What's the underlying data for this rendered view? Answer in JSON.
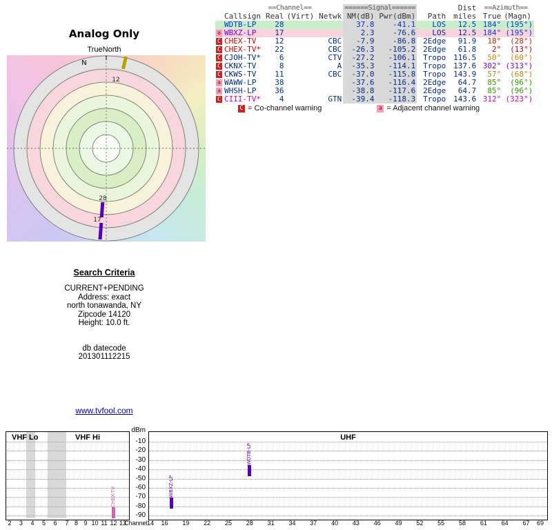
{
  "radar": {
    "title": "Analog Only",
    "subtitle": "TrueNorth",
    "north_label": "N",
    "markers": [
      {
        "label": "12",
        "color": "#b4a400"
      },
      {
        "label": "28",
        "color": "#5a00b4"
      },
      {
        "label": "17",
        "color": "#5a00b4"
      }
    ]
  },
  "table": {
    "header": {
      "channel_group": "==Channel==",
      "signal_group": "======Signal======",
      "dist_group": "Dist",
      "azimuth_group": "==Azimuth==",
      "cols": [
        "Callsign",
        "Real",
        "(Virt)",
        "Netwk",
        "NM(dB)",
        "Pwr(dBm)",
        "Path",
        "miles",
        "True",
        "(Magn)"
      ]
    },
    "rows": [
      {
        "flag": "",
        "flag_bg": "",
        "flag_fg": "",
        "callsign": "WDTB-LP",
        "cs_color": "#0033cc",
        "real": "28",
        "virt": "",
        "netwk": "",
        "nm": "37.8",
        "pwr": "-41.1",
        "path": "LOS",
        "miles": "12.5",
        "true_az": "184°",
        "magn_az": "(195°)",
        "az_color": "#0044cc",
        "bg": "#c9eec9",
        "text_color": "#0033cc"
      },
      {
        "flag": "a",
        "flag_bg": "#f4a0b4",
        "flag_fg": "#881133",
        "callsign": "WBXZ-LP",
        "cs_color": "#7a00cc",
        "real": "17",
        "virt": "",
        "netwk": "",
        "nm": "2.3",
        "pwr": "-76.6",
        "path": "LOS",
        "miles": "12.5",
        "true_az": "184°",
        "magn_az": "(195°)",
        "az_color": "#0044cc",
        "bg": "#f9d3de",
        "text_color": "#002a88"
      },
      {
        "flag": "C",
        "flag_bg": "#cc2222",
        "flag_fg": "#ffffff",
        "callsign": "CHEX-TV",
        "cs_color": "#cc0000",
        "real": "12",
        "virt": "",
        "netwk": "CBC",
        "nm": "-7.9",
        "pwr": "-86.8",
        "path": "2Edge",
        "miles": "91.9",
        "true_az": "18°",
        "magn_az": "(28°)",
        "az_color": "#cc2200",
        "bg": "#ffffff",
        "text_color": "#002a88"
      },
      {
        "flag": "C",
        "flag_bg": "#cc2222",
        "flag_fg": "#ffffff",
        "callsign": "CHEX-TV*",
        "cs_color": "#cc0000",
        "real": "22",
        "virt": "",
        "netwk": "CBC",
        "nm": "-26.3",
        "pwr": "-105.2",
        "path": "2Edge",
        "miles": "61.8",
        "true_az": "2°",
        "magn_az": "(13°)",
        "az_color": "#cc0000",
        "bg": "#ffffff",
        "text_color": "#002a88"
      },
      {
        "flag": "C",
        "flag_bg": "#cc2222",
        "flag_fg": "#ffffff",
        "callsign": "CJOH-TV*",
        "cs_color": "#002a88",
        "real": "6",
        "virt": "",
        "netwk": "CTV",
        "nm": "-27.2",
        "pwr": "-106.1",
        "path": "Tropo",
        "miles": "116.5",
        "true_az": "50°",
        "magn_az": "(60°)",
        "az_color": "#cc8800",
        "bg": "#ffffff",
        "text_color": "#002a88"
      },
      {
        "flag": "C",
        "flag_bg": "#cc2222",
        "flag_fg": "#ffffff",
        "callsign": "CKNX-TV",
        "cs_color": "#002a88",
        "real": "8",
        "virt": "",
        "netwk": "A",
        "nm": "-35.3",
        "pwr": "-114.1",
        "path": "Tropo",
        "miles": "137.6",
        "true_az": "302°",
        "magn_az": "(313°)",
        "az_color": "#8800cc",
        "bg": "#ffffff",
        "text_color": "#002a88"
      },
      {
        "flag": "C",
        "flag_bg": "#cc2222",
        "flag_fg": "#ffffff",
        "callsign": "CKWS-TV",
        "cs_color": "#002a88",
        "real": "11",
        "virt": "",
        "netwk": "CBC",
        "nm": "-37.0",
        "pwr": "-115.8",
        "path": "Tropo",
        "miles": "143.9",
        "true_az": "57°",
        "magn_az": "(68°)",
        "az_color": "#bb8800",
        "bg": "#ffffff",
        "text_color": "#002a88"
      },
      {
        "flag": "a",
        "flag_bg": "#f4a0b4",
        "flag_fg": "#881133",
        "callsign": "WAWW-LP",
        "cs_color": "#002a88",
        "real": "38",
        "virt": "",
        "netwk": "",
        "nm": "-37.6",
        "pwr": "-116.4",
        "path": "2Edge",
        "miles": "64.7",
        "true_az": "85°",
        "magn_az": "(96°)",
        "az_color": "#339900",
        "bg": "#ffffff",
        "text_color": "#002a88"
      },
      {
        "flag": "a",
        "flag_bg": "#f4a0b4",
        "flag_fg": "#881133",
        "callsign": "WHSH-LP",
        "cs_color": "#002a88",
        "real": "36",
        "virt": "",
        "netwk": "",
        "nm": "-38.8",
        "pwr": "-117.6",
        "path": "2Edge",
        "miles": "64.7",
        "true_az": "85°",
        "magn_az": "(96°)",
        "az_color": "#339900",
        "bg": "#ffffff",
        "text_color": "#002a88"
      },
      {
        "flag": "C",
        "flag_bg": "#cc2222",
        "flag_fg": "#ffffff",
        "callsign": "CIII-TV*",
        "cs_color": "#cc00cc",
        "real": "4",
        "virt": "",
        "netwk": "GTN",
        "nm": "-39.4",
        "pwr": "-118.3",
        "path": "Tropo",
        "miles": "143.6",
        "true_az": "312°",
        "magn_az": "(323°)",
        "az_color": "#cc00cc",
        "bg": "#ffffff",
        "text_color": "#002a88"
      }
    ],
    "legend": {
      "c_label": "C",
      "c_text": "= Co-channel warning",
      "a_label": "a",
      "a_text": "= Adjacent channel warning"
    }
  },
  "criteria": {
    "title": "Search Criteria",
    "lines": [
      "CURRENT+PENDING",
      "Address: exact",
      "north tonawanda, NY",
      "Zipcode 14120",
      "Height: 10.0 ft."
    ],
    "datecode_label": "db datecode",
    "datecode": "201301112215"
  },
  "link": {
    "text": "www.tvfool.com"
  },
  "spectrum": {
    "ylabel": "dBm",
    "xlabel": "Channel",
    "sections": {
      "vhf_lo": "VHF Lo",
      "vhf_hi": "VHF Hi",
      "uhf": "UHF"
    },
    "y_ticks": [
      "-10",
      "-20",
      "-30",
      "-40",
      "-50",
      "-60",
      "-70",
      "-80",
      "-90"
    ],
    "vhf_channels": [
      "2",
      "3",
      "4",
      "5",
      "6",
      "7",
      "8",
      "9",
      "10",
      "11",
      "12",
      "13"
    ],
    "uhf_channels": [
      "14",
      "16",
      "19",
      "22",
      "25",
      "28",
      "31",
      "34",
      "37",
      "40",
      "43",
      "46",
      "49",
      "52",
      "55",
      "58",
      "61",
      "64",
      "67",
      "69"
    ],
    "bars": [
      {
        "callsign": "CHEX-TV",
        "channel": 12,
        "dbm": -86.8,
        "color": "#d060b0",
        "panel": "vhf"
      },
      {
        "callsign": "WBXZ-LP",
        "channel": 17,
        "dbm": -76.6,
        "color": "#5a00b4",
        "panel": "uhf"
      },
      {
        "callsign": "WDTB-LP",
        "channel": 28,
        "dbm": -41.1,
        "color": "#5a00b4",
        "panel": "uhf"
      }
    ]
  },
  "chart_data": [
    {
      "type": "table",
      "title": "TV station signal analysis (Analog Only)",
      "columns": [
        "Callsign",
        "Real Channel",
        "Virt Channel",
        "Netwk",
        "NM(dB)",
        "Pwr(dBm)",
        "Path",
        "Dist miles",
        "Azimuth True (deg)",
        "Azimuth Magn (deg)"
      ],
      "rows": [
        [
          "WDTB-LP",
          28,
          null,
          "",
          37.8,
          -41.1,
          "LOS",
          12.5,
          184,
          195
        ],
        [
          "WBXZ-LP",
          17,
          null,
          "",
          2.3,
          -76.6,
          "LOS",
          12.5,
          184,
          195
        ],
        [
          "CHEX-TV",
          12,
          null,
          "CBC",
          -7.9,
          -86.8,
          "2Edge",
          91.9,
          18,
          28
        ],
        [
          "CHEX-TV*",
          22,
          null,
          "CBC",
          -26.3,
          -105.2,
          "2Edge",
          61.8,
          2,
          13
        ],
        [
          "CJOH-TV*",
          6,
          null,
          "CTV",
          -27.2,
          -106.1,
          "Tropo",
          116.5,
          50,
          60
        ],
        [
          "CKNX-TV",
          8,
          null,
          "A",
          -35.3,
          -114.1,
          "Tropo",
          137.6,
          302,
          313
        ],
        [
          "CKWS-TV",
          11,
          null,
          "CBC",
          -37.0,
          -115.8,
          "Tropo",
          143.9,
          57,
          68
        ],
        [
          "WAWW-LP",
          38,
          null,
          "",
          -37.6,
          -116.4,
          "2Edge",
          64.7,
          85,
          96
        ],
        [
          "WHSH-LP",
          36,
          null,
          "",
          -38.8,
          -117.6,
          "2Edge",
          64.7,
          85,
          96
        ],
        [
          "CIII-TV*",
          4,
          null,
          "GTN",
          -39.4,
          -118.3,
          "Tropo",
          143.6,
          312,
          323
        ]
      ]
    },
    {
      "type": "bar",
      "title": "Signal power by channel",
      "xlabel": "Channel",
      "ylabel": "dBm",
      "ylim": [
        -90,
        -10
      ],
      "x": [
        12,
        17,
        28
      ],
      "series": [
        {
          "name": "signal_dbm",
          "values": [
            -86.8,
            -76.6,
            -41.1
          ]
        }
      ],
      "labels": [
        "CHEX-TV",
        "WBXZ-LP",
        "WDTB-LP"
      ]
    }
  ]
}
